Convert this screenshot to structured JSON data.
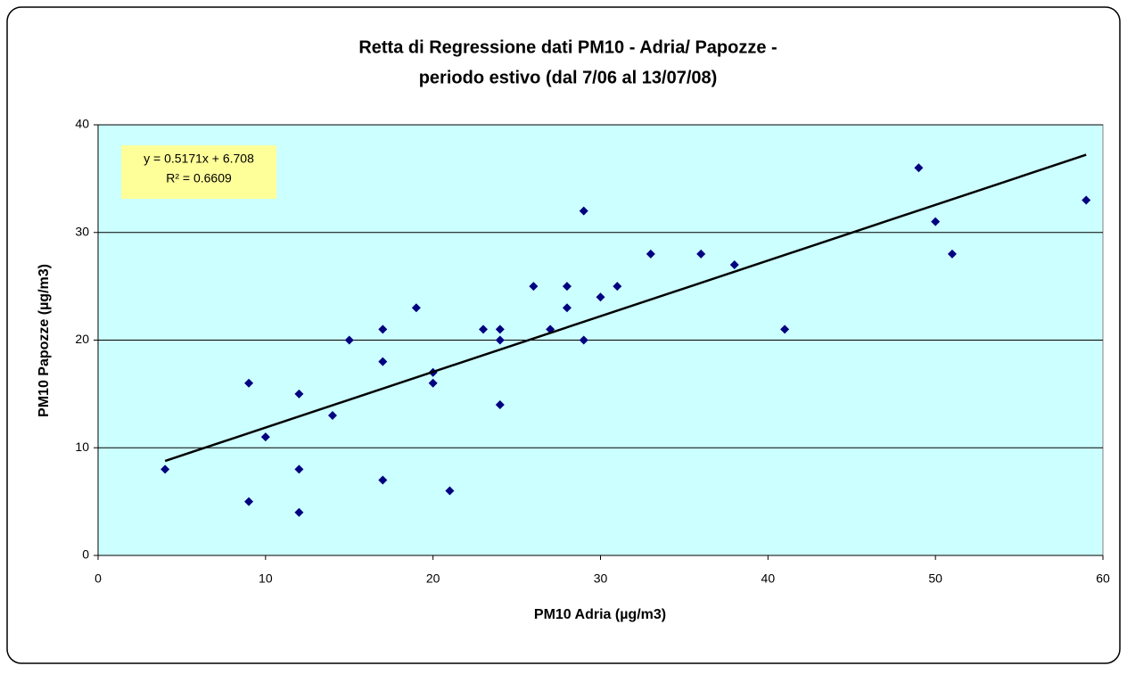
{
  "chart_data": {
    "type": "scatter",
    "title": [
      "Retta di Regressione dati PM10 - Adria/ Papozze -",
      "periodo estivo (dal 7/06 al 13/07/08)"
    ],
    "x_label": "PM10 Adria (µg/m3)",
    "y_label": "PM10 Papozze (µg/m3)",
    "color": "#000080",
    "background": "#ccffff",
    "grid": true,
    "x": [
      4,
      9,
      9,
      10,
      12,
      12,
      12,
      14,
      15,
      17,
      17,
      17,
      19,
      20,
      20,
      21,
      23,
      24,
      24,
      24,
      26,
      27,
      28,
      28,
      29,
      29,
      30,
      31,
      33,
      36,
      38,
      41,
      49,
      50,
      51,
      59
    ],
    "values": [
      8,
      16,
      5,
      11,
      15,
      8,
      4,
      13,
      20,
      21,
      18,
      7,
      23,
      17,
      16,
      6,
      21,
      21,
      20,
      14,
      25,
      21,
      25,
      23,
      32,
      20,
      24,
      25,
      28,
      28,
      27,
      21,
      36,
      31,
      28,
      33
    ],
    "xlim": [
      0,
      60
    ],
    "xticks": [
      0,
      10,
      20,
      30,
      40,
      50,
      60
    ],
    "ylim": [
      0,
      40
    ],
    "yticks": [
      0,
      10,
      20,
      30,
      40
    ],
    "trendline": {
      "slope": 0.5171,
      "intercept": 6.708,
      "r_squared": 0.6609,
      "color": "#000000"
    },
    "trendline_label": "y = 0.5171x + 6.708",
    "r2_label": "R² = 0.6609"
  }
}
